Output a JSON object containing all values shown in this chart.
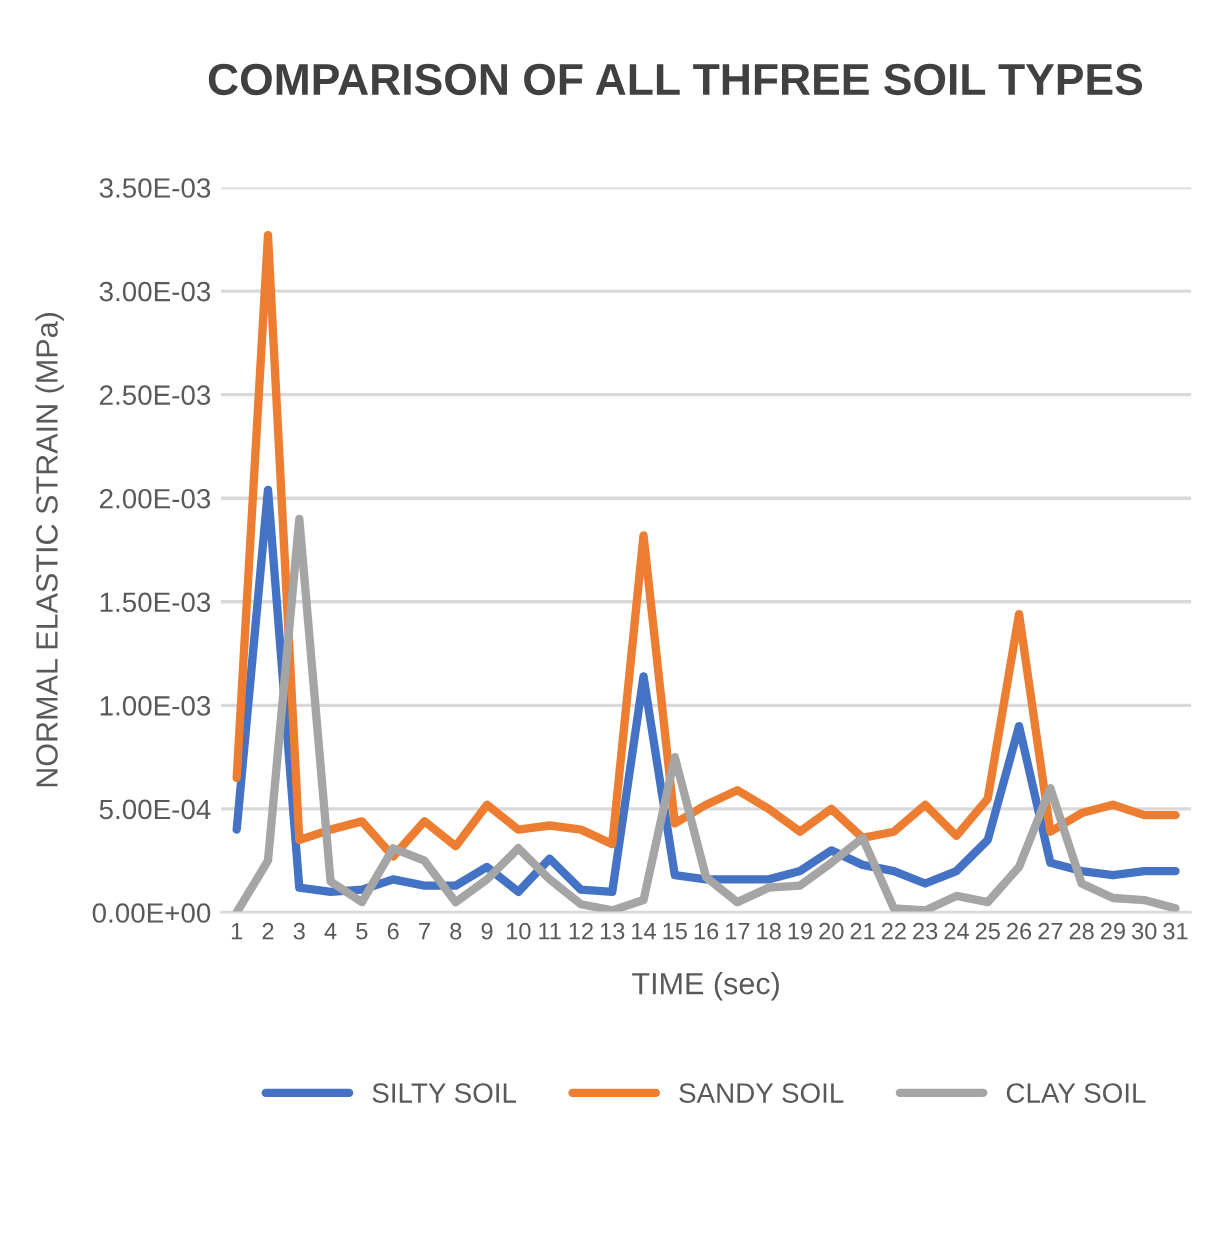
{
  "chart_data": {
    "type": "line",
    "title": "COMPARISON OF ALL THFREE SOIL TYPES",
    "xlabel": "TIME (sec)",
    "ylabel": "NORMAL ELASTIC STRAIN (MPa)",
    "categories": [
      "1",
      "2",
      "3",
      "4",
      "5",
      "6",
      "7",
      "8",
      "9",
      "10",
      "11",
      "12",
      "13",
      "14",
      "15",
      "16",
      "17",
      "18",
      "19",
      "20",
      "21",
      "22",
      "23",
      "24",
      "25",
      "26",
      "27",
      "28",
      "29",
      "30",
      "31"
    ],
    "series": [
      {
        "name": "SILTY SOIL",
        "color": "#4472c4",
        "values": [
          0.0004,
          0.00204,
          0.00012,
          0.0001,
          0.00011,
          0.00016,
          0.00013,
          0.00013,
          0.00022,
          0.0001,
          0.00026,
          0.00011,
          0.0001,
          0.00114,
          0.00018,
          0.00016,
          0.00016,
          0.00016,
          0.0002,
          0.0003,
          0.00023,
          0.0002,
          0.00014,
          0.0002,
          0.00035,
          0.0009,
          0.00024,
          0.0002,
          0.00018,
          0.0002,
          0.0002
        ]
      },
      {
        "name": "SANDY SOIL",
        "color": "#ed7d31",
        "values": [
          0.00065,
          0.00327,
          0.00035,
          0.0004,
          0.00044,
          0.00027,
          0.00044,
          0.00032,
          0.00052,
          0.0004,
          0.00042,
          0.0004,
          0.00033,
          0.00182,
          0.00043,
          0.00052,
          0.00059,
          0.0005,
          0.00039,
          0.0005,
          0.00036,
          0.00039,
          0.00052,
          0.00037,
          0.00055,
          0.00144,
          0.00039,
          0.00048,
          0.00052,
          0.00047,
          0.00047
        ]
      },
      {
        "name": "CLAY SOIL",
        "color": "#a5a5a5",
        "values": [
          0.0,
          0.00025,
          0.0019,
          0.00015,
          5e-05,
          0.00031,
          0.00025,
          5e-05,
          0.00016,
          0.00031,
          0.00016,
          4e-05,
          1e-05,
          6e-05,
          0.00075,
          0.00017,
          5e-05,
          0.00012,
          0.00013,
          0.00024,
          0.00036,
          2e-05,
          1e-05,
          8e-05,
          5e-05,
          0.00022,
          0.0006,
          0.00014,
          7e-05,
          6e-05,
          2e-05
        ]
      }
    ],
    "ylim": [
      0,
      0.0035
    ],
    "yticks": [
      {
        "value": 0,
        "label": "0.00E+00"
      },
      {
        "value": 0.0005,
        "label": "5.00E-04"
      },
      {
        "value": 0.001,
        "label": "1.00E-03"
      },
      {
        "value": 0.0015,
        "label": "1.50E-03"
      },
      {
        "value": 0.002,
        "label": "2.00E-03"
      },
      {
        "value": 0.0025,
        "label": "2.50E-03"
      },
      {
        "value": 0.003,
        "label": "3.00E-03"
      },
      {
        "value": 0.0035,
        "label": "3.50E-03"
      }
    ],
    "grid": "y",
    "legend": "bottom",
    "marker": "none",
    "line_style": "solid"
  }
}
